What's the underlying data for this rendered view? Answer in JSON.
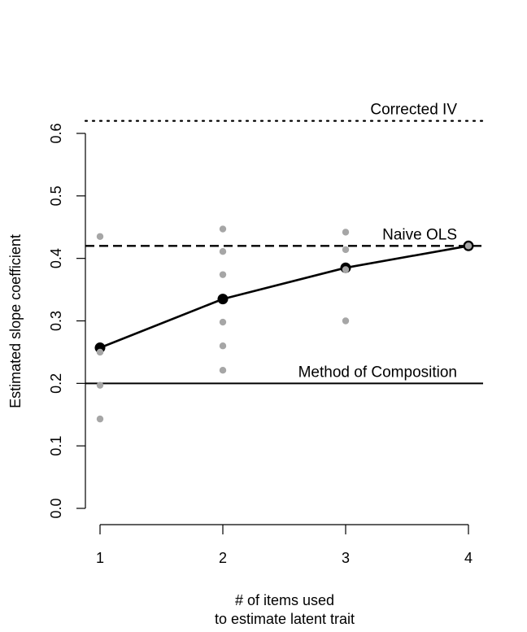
{
  "chart_data": {
    "type": "scatter",
    "x": [
      1,
      2,
      3,
      4
    ],
    "xlim": [
      1,
      4
    ],
    "ylim": [
      0,
      0.6
    ],
    "xticks": [
      "1",
      "2",
      "3",
      "4"
    ],
    "yticks": [
      "0.0",
      "0.1",
      "0.2",
      "0.3",
      "0.4",
      "0.5",
      "0.6"
    ],
    "xlabel": [
      "# of items used",
      "to estimate latent trait"
    ],
    "ylabel": "Estimated slope coefficient",
    "grid": false,
    "series": [
      {
        "kind": "points",
        "color": "#a6a6a6",
        "points": [
          {
            "x": 1,
            "y": 0.435
          },
          {
            "x": 1,
            "y": 0.25
          },
          {
            "x": 1,
            "y": 0.197
          },
          {
            "x": 1,
            "y": 0.143
          },
          {
            "x": 2,
            "y": 0.447
          },
          {
            "x": 2,
            "y": 0.411
          },
          {
            "x": 2,
            "y": 0.374
          },
          {
            "x": 2,
            "y": 0.298
          },
          {
            "x": 2,
            "y": 0.26
          },
          {
            "x": 2,
            "y": 0.221
          },
          {
            "x": 3,
            "y": 0.442
          },
          {
            "x": 3,
            "y": 0.414
          },
          {
            "x": 3,
            "y": 0.382
          },
          {
            "x": 3,
            "y": 0.3
          },
          {
            "x": 4,
            "y": 0.42
          }
        ]
      },
      {
        "kind": "line",
        "color": "#000000",
        "values": [
          0.257,
          0.335,
          0.385,
          0.42
        ]
      }
    ],
    "reference_lines": [
      {
        "label": "Corrected IV",
        "y": 0.62,
        "style": "dotted"
      },
      {
        "label": "Naive OLS",
        "y": 0.42,
        "style": "dashed"
      },
      {
        "label": "Method of Composition",
        "y": 0.2,
        "style": "solid"
      }
    ]
  }
}
